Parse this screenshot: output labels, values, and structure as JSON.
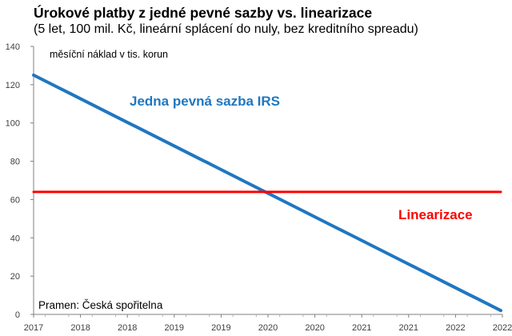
{
  "title": "Úrokové platby z jedné pevné sazby vs. linearizace",
  "subtitle": "(5 let, 100 mil. Kč, lineární splácení do nuly, bez kreditního spreadu)",
  "chart_data": {
    "type": "line",
    "ylabel": "měsíční náklad v tis. korun",
    "source": "Pramen: Česká spořitelna",
    "ylim": [
      0,
      140
    ],
    "yticks": [
      0,
      20,
      40,
      60,
      80,
      100,
      120,
      140
    ],
    "x_tick_labels": [
      "2017",
      "2018",
      "2018",
      "2019",
      "2019",
      "2020",
      "2020",
      "2021",
      "2021",
      "2022",
      "2022"
    ],
    "x_points": 60,
    "grid": false,
    "series": [
      {
        "name": "Jedna pevná sazba IRS",
        "color": "#1f77c0",
        "start_value": 125,
        "end_value": 2
      },
      {
        "name": "Linearizace",
        "color": "#ff0000",
        "start_value": 64,
        "end_value": 64
      }
    ]
  }
}
